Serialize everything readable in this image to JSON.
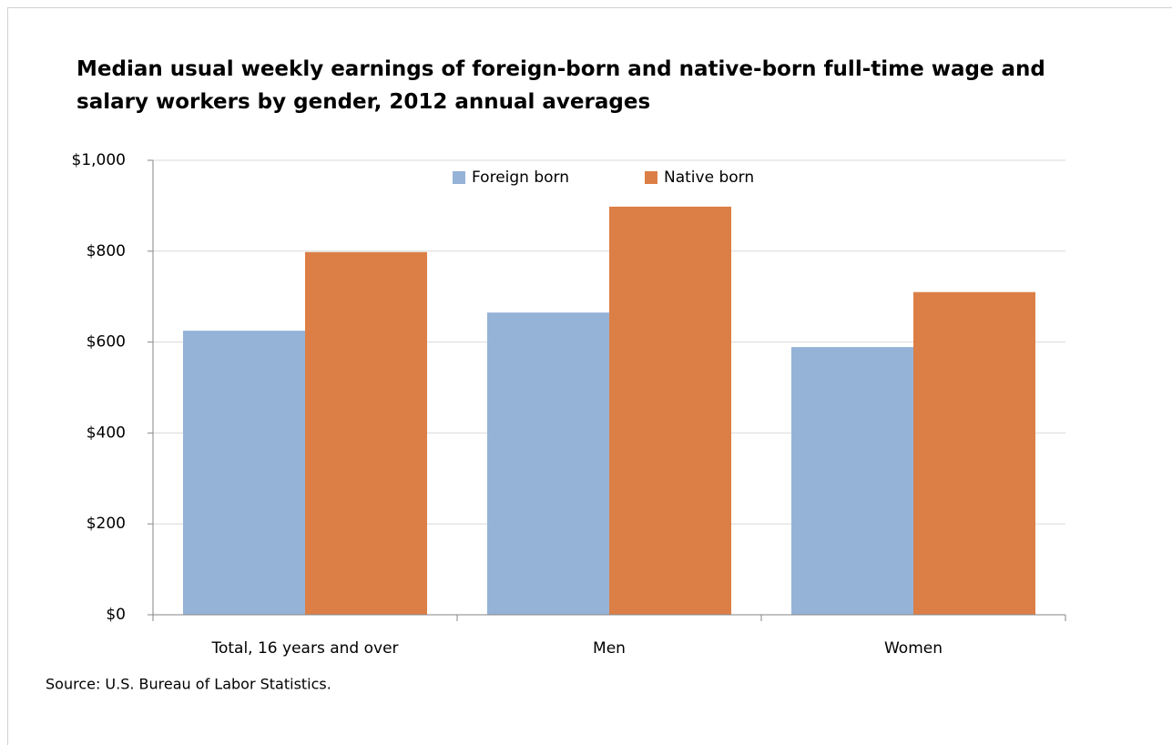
{
  "chart_data": {
    "type": "bar",
    "title": "Median usual weekly earnings of foreign-born and native-born full-time wage and salary workers by gender, 2012 annual averages",
    "categories": [
      "Total, 16 years and over",
      "Men",
      "Women"
    ],
    "series": [
      {
        "name": "Foreign born",
        "color": "#95b3d7",
        "values": [
          625,
          665,
          589
        ]
      },
      {
        "name": "Native born",
        "color": "#dc7f46",
        "values": [
          798,
          898,
          710
        ]
      }
    ],
    "ylim": [
      0,
      1000
    ],
    "yticks": [
      {
        "value": 0,
        "label": "$0"
      },
      {
        "value": 200,
        "label": "$200"
      },
      {
        "value": 400,
        "label": "$400"
      },
      {
        "value": 600,
        "label": "$600"
      },
      {
        "value": 800,
        "label": "$800"
      },
      {
        "value": 1000,
        "label": "$1,000"
      }
    ],
    "grid": true,
    "legend": "top",
    "source": "Source: U.S. Bureau of Labor Statistics."
  }
}
